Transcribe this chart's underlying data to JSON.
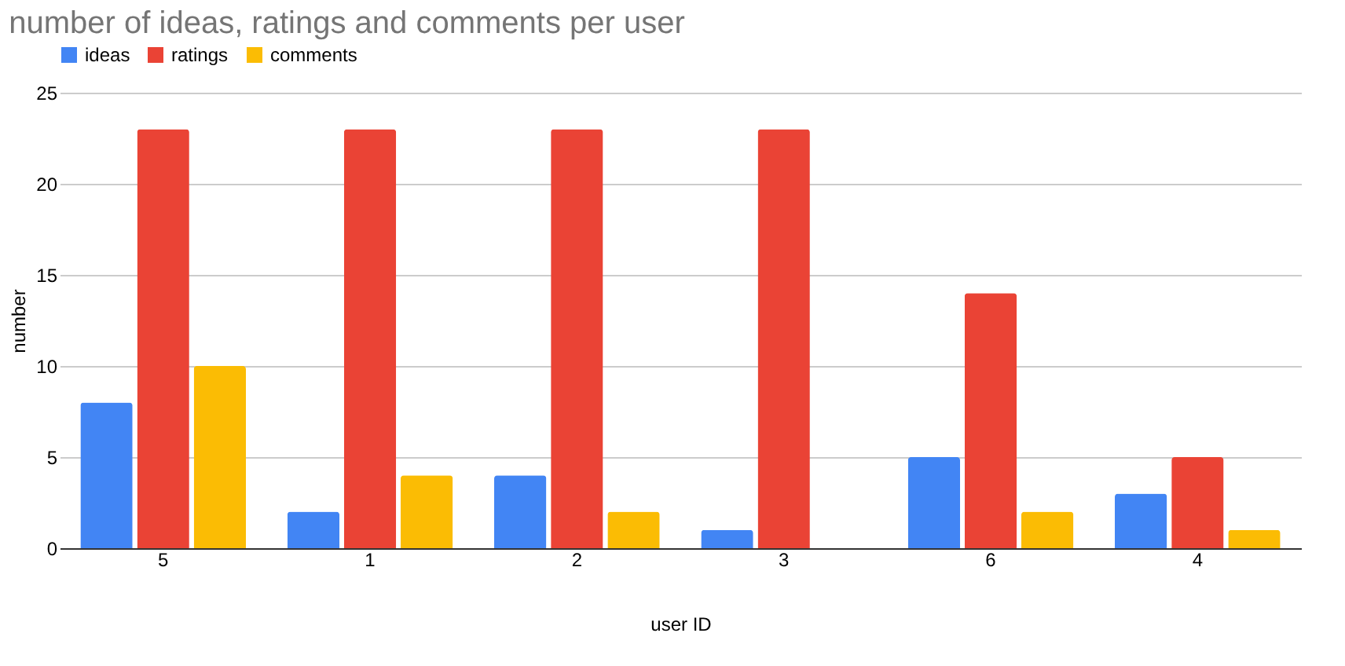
{
  "chart_data": {
    "type": "bar",
    "title": "number of ideas, ratings and comments per user",
    "xlabel": "user ID",
    "ylabel": "number",
    "categories": [
      "5",
      "1",
      "2",
      "3",
      "6",
      "4"
    ],
    "series": [
      {
        "name": "ideas",
        "color": "#4285f4",
        "values": [
          8,
          2,
          4,
          1,
          5,
          3
        ]
      },
      {
        "name": "ratings",
        "color": "#ea4335",
        "values": [
          23,
          23,
          23,
          23,
          14,
          5
        ]
      },
      {
        "name": "comments",
        "color": "#fbbc04",
        "values": [
          10,
          4,
          2,
          0,
          2,
          1
        ]
      }
    ],
    "ylim": [
      0,
      25
    ],
    "yticks": [
      0,
      5,
      10,
      15,
      20,
      25
    ],
    "grid": "y",
    "legend": "top"
  }
}
